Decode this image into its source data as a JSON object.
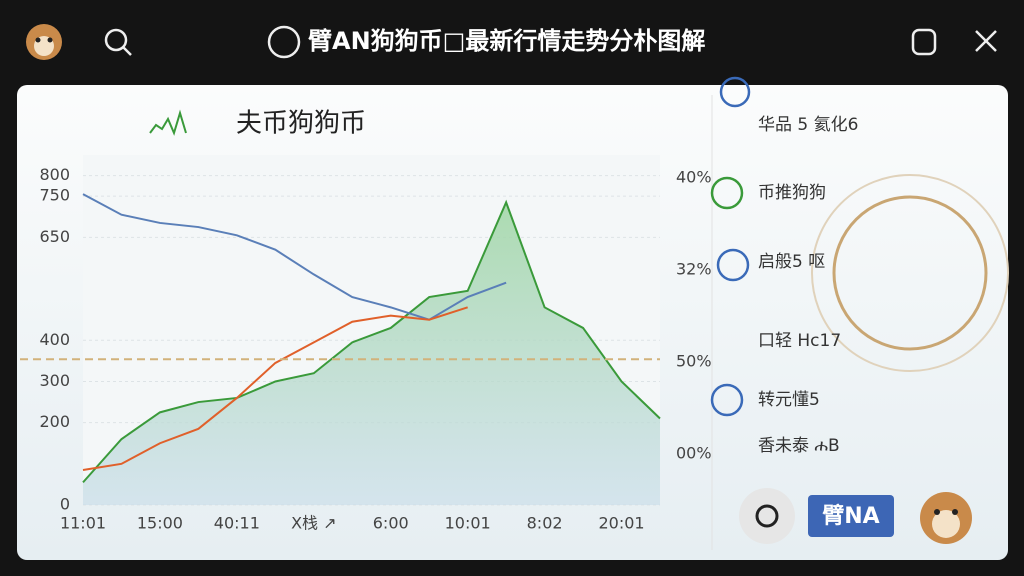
{
  "header": {
    "title": "臂AN狗狗币□最新行情走势分朴图解"
  },
  "side_items": [
    "华品 5 氦化6",
    "币推狗狗",
    "启般5 呕",
    "口轻 Hc17",
    "转元懂5",
    "香未泰 ሐB"
  ],
  "bottom_label": "臂NA",
  "right_axis_labels": [
    "40%",
    "32%",
    "50%",
    "00%"
  ],
  "chart_data": {
    "type": "line",
    "title": "夫币狗狗币",
    "categories": [
      "11:01",
      null,
      "15:00",
      null,
      "40:11",
      null,
      "X栈 ↗",
      null,
      "6:00",
      null,
      "10:01",
      null,
      "8:02",
      null,
      "20:01",
      null
    ],
    "series": [
      {
        "name": "green",
        "color": "#3a9a3a",
        "values": [
          55,
          160,
          225,
          250,
          260,
          300,
          320,
          395,
          430,
          505,
          520,
          735,
          480,
          430,
          300,
          210
        ]
      },
      {
        "name": "blue",
        "color": "#5a7fb8",
        "values": [
          755,
          705,
          685,
          675,
          655,
          620,
          560,
          505,
          480,
          450,
          505,
          540,
          null,
          null,
          null,
          null
        ]
      },
      {
        "name": "orange",
        "color": "#e0602a",
        "values": [
          85,
          100,
          150,
          185,
          260,
          345,
          395,
          445,
          460,
          450,
          480,
          null,
          null,
          null,
          null,
          null
        ]
      }
    ],
    "reference_line": 354,
    "ylim": [
      0,
      850
    ],
    "yticks": [
      0,
      200,
      300,
      400,
      650,
      750,
      800
    ],
    "grid": true
  }
}
